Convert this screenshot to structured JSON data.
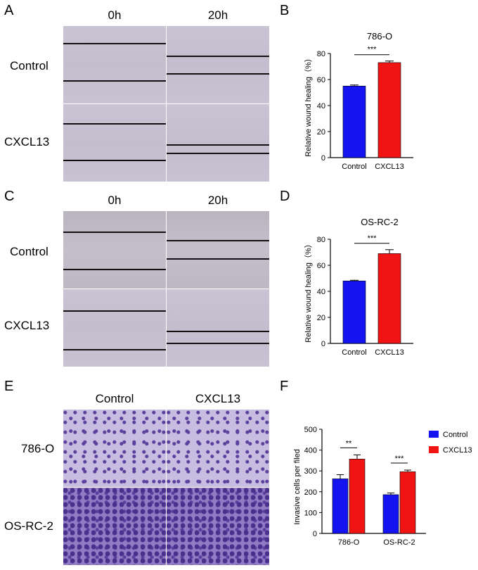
{
  "panels": {
    "A": {
      "letter": "A",
      "col_labels": [
        "0h",
        "20h"
      ],
      "row_labels": [
        "Control",
        "CXCL13"
      ]
    },
    "B": {
      "letter": "B"
    },
    "C": {
      "letter": "C",
      "col_labels": [
        "0h",
        "20h"
      ],
      "row_labels": [
        "Control",
        "CXCL13"
      ]
    },
    "D": {
      "letter": "D"
    },
    "E": {
      "letter": "E",
      "col_labels": [
        "Control",
        "CXCL13"
      ],
      "row_labels": [
        "786-O",
        "OS-RC-2"
      ]
    },
    "F": {
      "letter": "F"
    }
  },
  "colors": {
    "control": "#1414f0",
    "cxcl13": "#f01414"
  },
  "chart_data": [
    {
      "id": "B",
      "type": "bar",
      "title": "786-O",
      "categories": [
        "Control",
        "CXCL13"
      ],
      "values": [
        55,
        73
      ],
      "errors": [
        0.8,
        1.2
      ],
      "ylabel": "Relative wound healing（%）",
      "ylim": [
        0,
        80
      ],
      "yticks": [
        0,
        20,
        40,
        60,
        80
      ],
      "significance": "***"
    },
    {
      "id": "D",
      "type": "bar",
      "title": "OS-RC-2",
      "categories": [
        "Control",
        "CXCL13"
      ],
      "values": [
        48,
        69
      ],
      "errors": [
        0.5,
        3
      ],
      "ylabel": "Relative wound healing（%）",
      "ylim": [
        0,
        80
      ],
      "yticks": [
        0,
        20,
        40,
        60,
        80
      ],
      "significance": "***"
    },
    {
      "id": "F",
      "type": "bar",
      "title": "",
      "categories": [
        "786-O",
        "OS-RC-2"
      ],
      "series": [
        {
          "name": "Control",
          "values": [
            262,
            186
          ],
          "errors": [
            20,
            8
          ]
        },
        {
          "name": "CXCL13",
          "values": [
            357,
            296
          ],
          "errors": [
            20,
            8
          ]
        }
      ],
      "significance": [
        "**",
        "***"
      ],
      "ylabel": "Invasive cells per filed",
      "ylim": [
        0,
        500
      ],
      "yticks": [
        0,
        100,
        200,
        300,
        400,
        500
      ],
      "legend": "top-right"
    }
  ]
}
